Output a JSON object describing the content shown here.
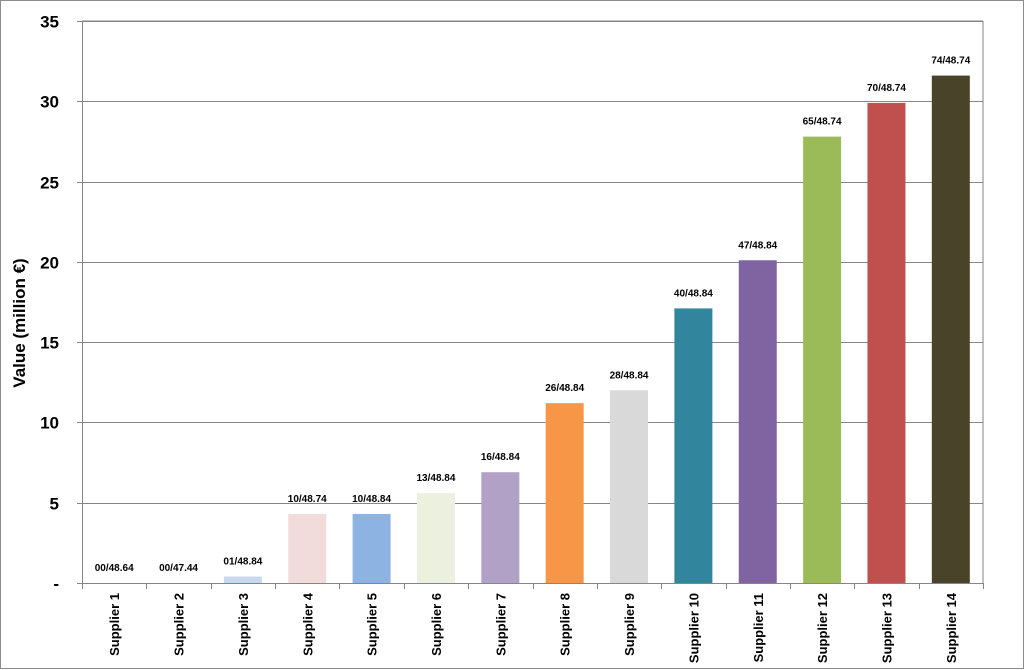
{
  "chart_data": {
    "type": "bar",
    "title": "",
    "xlabel": "",
    "ylabel": "Value (million €)",
    "ylim": [
      0,
      35
    ],
    "yticks": [
      0,
      5,
      10,
      15,
      20,
      25,
      30,
      35
    ],
    "ytick_labels": [
      "-",
      "5",
      "10",
      "15",
      "20",
      "25",
      "30",
      "35"
    ],
    "grid": "horizontal",
    "legend": "none",
    "categories": [
      "Supplier 1",
      "Supplier 2",
      "Supplier 3",
      "Supplier 4",
      "Supplier 5",
      "Supplier 6",
      "Supplier 7",
      "Supplier 8",
      "Supplier 9",
      "Supplier 10",
      "Supplier 11",
      "Supplier 12",
      "Supplier 13",
      "Supplier 14"
    ],
    "values": [
      0,
      0,
      0.4,
      4.3,
      4.3,
      5.6,
      6.9,
      11.2,
      12.0,
      17.1,
      20.1,
      27.8,
      29.9,
      31.6
    ],
    "data_labels": [
      "00/48.64",
      "00/47.44",
      "01/48.84",
      "10/48.74",
      "10/48.84",
      "13/48.84",
      "16/48.84",
      "26/48.84",
      "28/48.84",
      "40/48.84",
      "47/48.84",
      "65/48.74",
      "70/48.74",
      "74/48.74"
    ],
    "colors": [
      "#4f81bd",
      "#c0504d",
      "#c6d9f1",
      "#f2dcdb",
      "#8db3e2",
      "#ebf1de",
      "#b2a1c7",
      "#f79646",
      "#d9d9d9",
      "#31859c",
      "#8064a2",
      "#9bbb59",
      "#c0504d",
      "#494429"
    ]
  }
}
